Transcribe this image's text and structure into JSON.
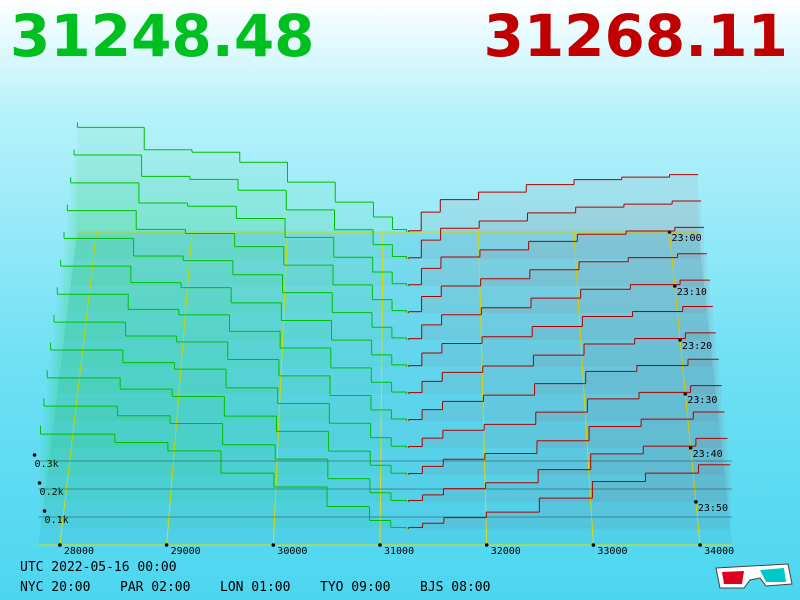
{
  "chart_data": {
    "type": "depth3d",
    "bid_label": "31248.48",
    "ask_label": "31268.11",
    "bid_color": "#00c000",
    "ask_color": "#b00000",
    "xlim": [
      27800,
      34300
    ],
    "xticks": [
      28000,
      29000,
      30000,
      31000,
      32000,
      33000,
      34000
    ],
    "zlim": [
      0,
      58
    ],
    "zticks": [
      {
        "value": 0,
        "label": "23:00"
      },
      {
        "value": 10,
        "label": "23:10"
      },
      {
        "value": 20,
        "label": "23:20"
      },
      {
        "value": 30,
        "label": "23:30"
      },
      {
        "value": 40,
        "label": "23:40"
      },
      {
        "value": 50,
        "label": "23:50"
      }
    ],
    "yticks": [
      {
        "value": 100,
        "label": "0.1k"
      },
      {
        "value": 200,
        "label": "0.2k"
      },
      {
        "value": 300,
        "label": "0.3k"
      }
    ],
    "bid_prices": [
      31248,
      31100,
      30900,
      30500,
      30000,
      29500,
      29000,
      28500,
      27800
    ],
    "ask_prices": [
      31268,
      31400,
      31600,
      32000,
      32500,
      33000,
      33500,
      34000
    ],
    "snapshots": [
      {
        "time": 0,
        "bids": [
          10,
          60,
          120,
          200,
          280,
          320,
          330,
          420,
          440
        ],
        "asks": [
          5,
          80,
          130,
          160,
          190,
          210,
          220,
          230
        ]
      },
      {
        "time": 5,
        "bids": [
          10,
          57,
          116,
          195,
          273,
          316,
          328,
          413,
          434
        ],
        "asks": [
          5,
          75,
          122,
          151,
          183,
          206,
          218,
          230
        ]
      },
      {
        "time": 10,
        "bids": [
          9,
          55,
          113,
          191,
          265,
          313,
          326,
          405,
          427
        ],
        "asks": [
          5,
          69,
          114,
          142,
          175,
          203,
          216,
          230
        ]
      },
      {
        "time": 15,
        "bids": [
          9,
          52,
          109,
          186,
          258,
          309,
          325,
          398,
          421
        ],
        "asks": [
          5,
          64,
          105,
          133,
          168,
          199,
          215,
          230
        ]
      },
      {
        "time": 20,
        "bids": [
          8,
          49,
          105,
          182,
          251,
          305,
          323,
          391,
          415
        ],
        "asks": [
          5,
          58,
          97,
          124,
          161,
          195,
          213,
          230
        ]
      },
      {
        "time": 25,
        "bids": [
          8,
          46,
          102,
          177,
          244,
          302,
          321,
          384,
          408
        ],
        "asks": [
          5,
          53,
          89,
          115,
          154,
          192,
          211,
          230
        ]
      },
      {
        "time": 30,
        "bids": [
          7,
          44,
          98,
          173,
          236,
          298,
          319,
          376,
          402
        ],
        "asks": [
          5,
          47,
          81,
          105,
          146,
          188,
          209,
          230
        ]
      },
      {
        "time": 35,
        "bids": [
          7,
          41,
          95,
          168,
          229,
          295,
          317,
          369,
          395
        ],
        "asks": [
          5,
          42,
          73,
          96,
          139,
          185,
          207,
          230
        ]
      },
      {
        "time": 40,
        "bids": [
          6,
          38,
          91,
          164,
          222,
          291,
          315,
          362,
          389
        ],
        "asks": [
          5,
          36,
          65,
          87,
          132,
          181,
          205,
          230
        ]
      },
      {
        "time": 45,
        "bids": [
          6,
          35,
          87,
          159,
          215,
          287,
          314,
          355,
          383
        ],
        "asks": [
          5,
          31,
          57,
          78,
          125,
          177,
          204,
          230
        ]
      },
      {
        "time": 50,
        "bids": [
          5,
          33,
          84,
          155,
          207,
          284,
          312,
          347,
          376
        ],
        "asks": [
          5,
          25,
          48,
          69,
          117,
          174,
          202,
          230
        ]
      },
      {
        "time": 55,
        "bids": [
          5,
          30,
          80,
          150,
          200,
          280,
          310,
          340,
          370
        ],
        "asks": [
          5,
          20,
          40,
          60,
          110,
          170,
          200,
          230
        ]
      }
    ],
    "utc_label": "UTC 2022-05-16 00:00",
    "cities": [
      "NYC 20:00",
      "PAR 02:00",
      "LON 01:00",
      "TYO 09:00",
      "BJS 08:00"
    ]
  }
}
